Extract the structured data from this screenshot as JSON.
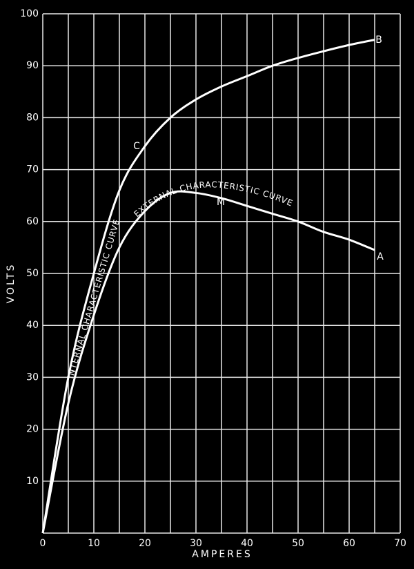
{
  "chart_data": {
    "type": "line",
    "x_label": "AMPERES",
    "y_label": "VOLTS",
    "x": [
      0,
      5,
      10,
      15,
      20,
      25,
      30,
      35,
      40,
      45,
      50,
      55,
      60,
      65
    ],
    "series": [
      {
        "name": "INTERNAL CHARACTERISTIC CURVE",
        "color": "#ffffff",
        "values": [
          0,
          30,
          50,
          66,
          74.5,
          80,
          83.5,
          86,
          88,
          90,
          91.5,
          92.8,
          94,
          95
        ]
      },
      {
        "name": "EXTERNAL CHARACTERISTIC CURVE",
        "color": "#ffffff",
        "values": [
          0,
          25,
          42,
          55,
          62,
          65.5,
          65.5,
          64.5,
          63,
          61.5,
          60,
          58,
          56.5,
          54.5
        ]
      }
    ],
    "annotations": [
      "B",
      "C",
      "A",
      "M"
    ],
    "xlim": [
      0,
      70
    ],
    "ylim": [
      0,
      100
    ],
    "xticks": [
      0,
      10,
      20,
      30,
      40,
      50,
      60,
      70
    ],
    "x_minor_grid": [
      5,
      15,
      25,
      35,
      45,
      55,
      65
    ],
    "yticks": [
      0,
      10,
      20,
      30,
      40,
      50,
      60,
      70,
      80,
      90,
      100
    ],
    "grid": true
  }
}
